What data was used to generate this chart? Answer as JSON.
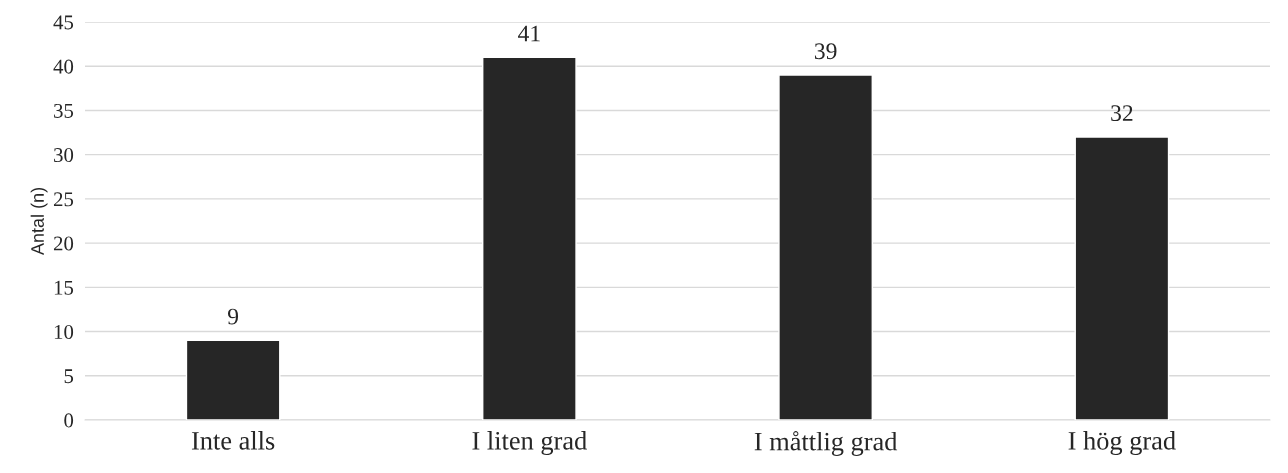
{
  "chart_data": {
    "type": "bar",
    "ylabel": "Antal (n)",
    "categories": [
      "Inte alls",
      "I liten grad",
      "I måttlig grad",
      "I hög grad"
    ],
    "values": [
      9,
      41,
      39,
      32
    ],
    "color": "#262626",
    "ylim": [
      0,
      45
    ],
    "yticks": [
      0,
      5,
      10,
      15,
      20,
      25,
      30,
      35,
      40,
      45
    ],
    "grid": "y",
    "data_labels": true,
    "legend": false
  }
}
